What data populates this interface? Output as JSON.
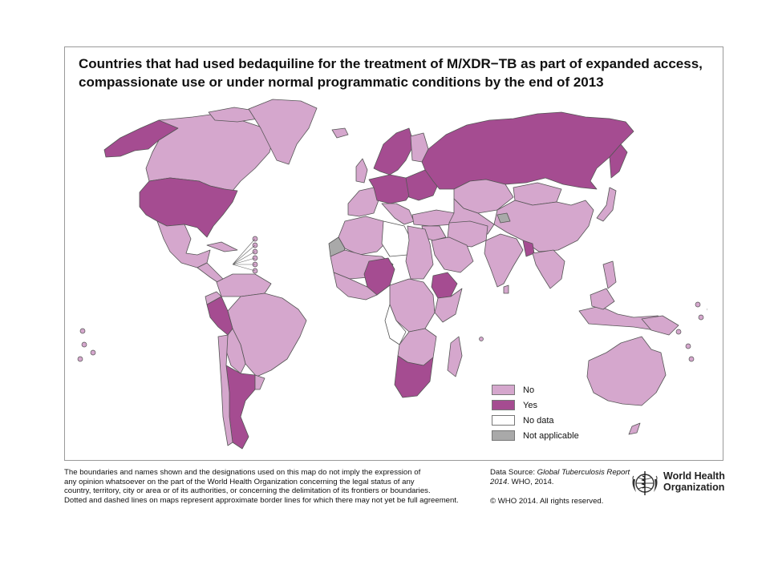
{
  "title": {
    "line1": "Countries that had used bedaquiline for the treatment of M/XDR−TB as part of expanded access,",
    "line2": "compassionate use or under normal programmatic conditions by the end of 2013"
  },
  "colors": {
    "no": "#d5a7cd",
    "yes": "#a54c91",
    "no_data": "#ffffff",
    "not_applicable": "#a9a9a9",
    "border": "#555555"
  },
  "legend": {
    "items": [
      {
        "label": "No",
        "color": "#d5a7cd"
      },
      {
        "label": "Yes",
        "color": "#a54c91"
      },
      {
        "label": "No data",
        "color": "#ffffff"
      },
      {
        "label": "Not applicable",
        "color": "#a9a9a9"
      }
    ]
  },
  "disclaimer": {
    "line1": "The boundaries and names shown and the designations used on this map do not imply the expression of",
    "line2": "any opinion whatsoever on the part of the World Health Organization concerning the legal status of any",
    "line3": "country, territory, city or area or of its authorities, or concerning the delimitation of its frontiers or boundaries.",
    "line4": "Dotted and dashed lines on maps represent approximate border lines for which there may not yet be full agreement."
  },
  "source": {
    "prefix": "Data Source: ",
    "italic": "Global Tuberculosis Report 2014",
    "suffix": ". WHO, 2014."
  },
  "copyright": "© WHO 2014. All rights reserved.",
  "who": {
    "line1": "World Health",
    "line2": "Organization",
    "emblem_icon": "who-emblem-icon"
  }
}
